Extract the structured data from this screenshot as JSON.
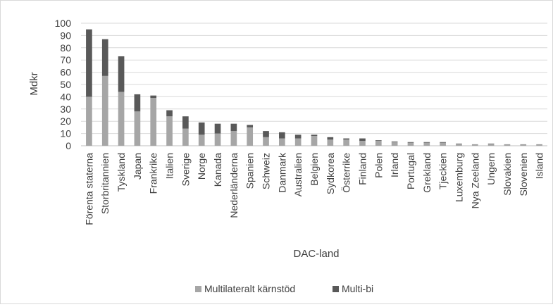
{
  "chart_data": {
    "type": "bar",
    "stacked": true,
    "title": "",
    "xlabel": "DAC-land",
    "ylabel": "Mdkr",
    "ylim": [
      0,
      100
    ],
    "yticks": [
      0,
      10,
      20,
      30,
      40,
      50,
      60,
      70,
      80,
      90,
      100
    ],
    "grid": true,
    "legend_position": "bottom",
    "categories": [
      "Förenta staterna",
      "Storbritannien",
      "Tyskland",
      "Japan",
      "Frankrike",
      "Italien",
      "Sverige",
      "Norge",
      "Kanada",
      "Nederländerna",
      "Spanien",
      "Schweiz",
      "Danmark",
      "Australien",
      "Belgien",
      "Sydkorea",
      "Österrike",
      "Finland",
      "Polen",
      "Irland",
      "Portugal",
      "Grekland",
      "Tjeckien",
      "Luxemburg",
      "Nya Zeeland",
      "Ungern",
      "Slovakien",
      "Slovenien",
      "Island"
    ],
    "series": [
      {
        "name": "Multilateralt kärnstöd",
        "color": "#a6a6a6",
        "values": [
          40,
          57,
          44,
          28,
          39,
          24,
          14,
          9,
          10,
          12,
          15,
          7,
          6,
          6,
          8,
          5,
          5,
          4,
          4,
          3,
          2.5,
          2.5,
          2.5,
          1.5,
          1,
          1.5,
          1,
          1,
          1
        ]
      },
      {
        "name": "Multi-bi",
        "color": "#595959",
        "values": [
          55,
          30,
          29,
          14,
          2,
          5,
          10,
          10,
          8,
          6,
          2,
          5,
          5,
          3,
          1,
          2,
          1,
          2,
          0.5,
          0.5,
          0.5,
          0.5,
          0.5,
          0.3,
          0.2,
          0.3,
          0.2,
          0.2,
          0.2
        ]
      }
    ]
  }
}
